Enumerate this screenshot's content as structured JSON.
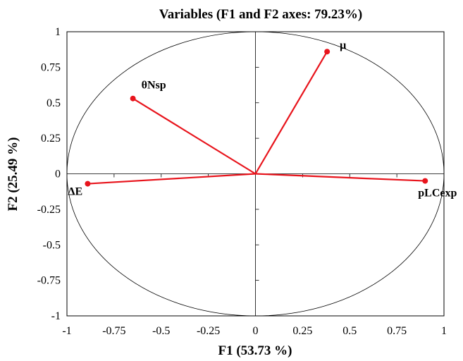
{
  "chart_data": {
    "type": "scatter",
    "title": "Variables (F1 and F2 axes: 79.23%)",
    "xlabel": "F1 (53.73 %)",
    "ylabel": "F2 (25.49 %)",
    "xlim": [
      -1,
      1
    ],
    "ylim": [
      -1,
      1
    ],
    "x_ticks": [
      "-1",
      "-0.75",
      "-0.5",
      "-0.25",
      "0",
      "0.25",
      "0.5",
      "0.75",
      "1"
    ],
    "y_ticks": [
      "1",
      "0.75",
      "0.5",
      "0.25",
      "0",
      "-0.25",
      "-0.5",
      "-0.75",
      "-1"
    ],
    "correlation_circle": true,
    "grid": false,
    "vector_color": "#e8141c",
    "points": [
      {
        "label": "μ",
        "x": 0.38,
        "y": 0.86
      },
      {
        "label": "θNsp",
        "x": -0.65,
        "y": 0.53
      },
      {
        "label": "ΔE",
        "x": -0.89,
        "y": -0.07
      },
      {
        "label": "pLCexp",
        "x": 0.9,
        "y": -0.05
      }
    ]
  }
}
